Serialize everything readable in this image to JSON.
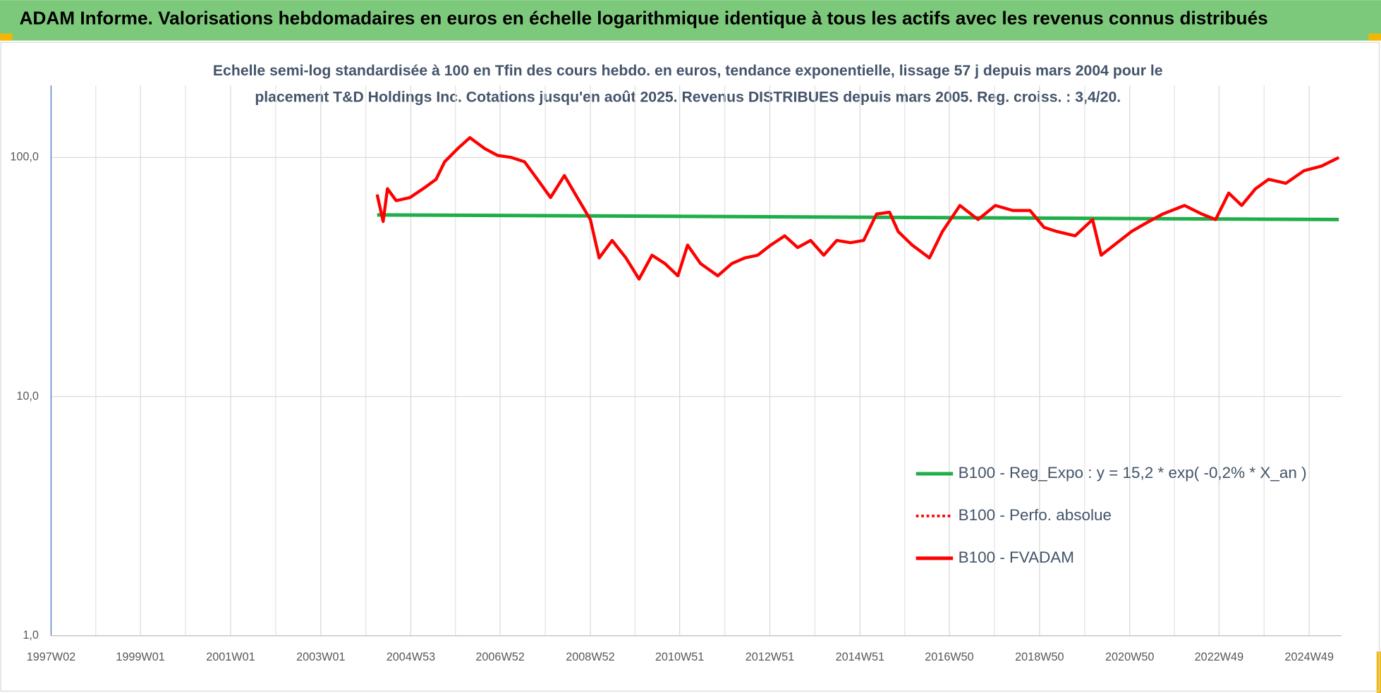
{
  "chart_data": {
    "type": "line",
    "title": "ADAM Informe. Valorisations hebdomadaires en euros en échelle logarithmique identique à tous les actifs avec les revenus connus distribués",
    "subtitle": [
      "Echelle semi-log standardisée à 100 en Tfin des cours hebdo. en euros, tendance exponentielle, lissage 57 j depuis mars 2004 pour le",
      "placement T&D Holdings Inc. Cotations jusqu'en août 2025. Revenus DISTRIBUES depuis mars 2005. Reg. croiss. : 3,4/20."
    ],
    "log_scale": true,
    "grid": true,
    "xlim": [
      "1997W02",
      "2025W34"
    ],
    "xticks": [
      "1997W02",
      "1999W01",
      "2001W01",
      "2003W01",
      "2004W53",
      "2006W52",
      "2008W52",
      "2010W51",
      "2012W51",
      "2014W51",
      "2016W50",
      "2018W50",
      "2020W50",
      "2022W49",
      "2024W49"
    ],
    "ylim": [
      1,
      200
    ],
    "yticks": [
      {
        "value": 1,
        "label": "1,0"
      },
      {
        "value": 10,
        "label": "10,0"
      },
      {
        "value": 100,
        "label": "100,0"
      }
    ],
    "legend": "right",
    "series": [
      {
        "name": "B100 - Reg_Expo : y = 15,2 * exp( -0,2% *  X_an )",
        "color": "#1fae4a",
        "style": "solid",
        "x": [
          "2004W14",
          "2025W31"
        ],
        "values": [
          57.5,
          55.0
        ]
      },
      {
        "name": "B100 - Perfo. absolue",
        "color": "#ff0000",
        "style": "dotted",
        "x": [],
        "values": []
      },
      {
        "name": "B100 - FVADAM",
        "color": "#ff0000",
        "style": "solid",
        "x": [
          "2004W14",
          "2004W21",
          "2004W26",
          "2004W36",
          "2004W52",
          "2005W15",
          "2005W30",
          "2005W40",
          "2006W03",
          "2006W17",
          "2006W34",
          "2006W49",
          "2007W13",
          "2007W28",
          "2007W43",
          "2008W06",
          "2008W22",
          "2008W37",
          "2008W52",
          "2009W10",
          "2009W25",
          "2009W41",
          "2010W04",
          "2010W19",
          "2010W34",
          "2010W49",
          "2011W08",
          "2011W23",
          "2011W43",
          "2012W07",
          "2012W22",
          "2012W37",
          "2012W52",
          "2013W16",
          "2013W31",
          "2013W46",
          "2014W09",
          "2014W24",
          "2014W40",
          "2015W03",
          "2015W18",
          "2015W33",
          "2015W43",
          "2016W07",
          "2016W27",
          "2016W42",
          "2017W10",
          "2017W31",
          "2017W51",
          "2018W19",
          "2018W39",
          "2019W03",
          "2019W18",
          "2019W39",
          "2020W07",
          "2020W17",
          "2020W32",
          "2020W52",
          "2021W16",
          "2021W36",
          "2022W09",
          "2022W29",
          "2022W45",
          "2023W08",
          "2023W23",
          "2023W39",
          "2024W02",
          "2024W22",
          "2024W43",
          "2025W11",
          "2025W31"
        ],
        "values": [
          70,
          54,
          74,
          66,
          68,
          74,
          81,
          96,
          109,
          121,
          109,
          102,
          100,
          96,
          81,
          68,
          84,
          68,
          55,
          38,
          45,
          38,
          31,
          39,
          36,
          32,
          43,
          36,
          32,
          36,
          38,
          39,
          43,
          47,
          42,
          45,
          39,
          45,
          44,
          45,
          58,
          59,
          49,
          43,
          38,
          49,
          63,
          55,
          63,
          60,
          60,
          51,
          49,
          47,
          55,
          39,
          43,
          49,
          53,
          58,
          63,
          58,
          55,
          71,
          63,
          74,
          81,
          78,
          88,
          92,
          100
        ]
      }
    ]
  }
}
